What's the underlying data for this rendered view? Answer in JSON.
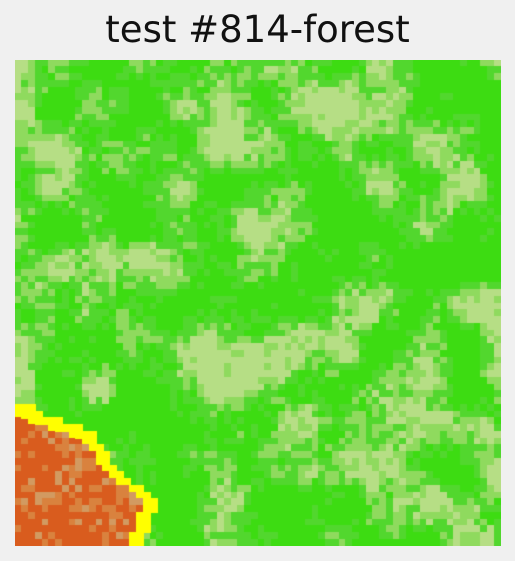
{
  "header": {
    "title": "test #814-forest"
  },
  "grid": {
    "cells_per_side": 72,
    "palette": {
      "forest": "#3ddc12",
      "forest_alt": "#52d72e",
      "grass": "#8fda5e",
      "meadow": "#b6de85",
      "fire_front": "#ffff00",
      "burned": "#d95c1e",
      "burned_alt": "#d9823e",
      "burned_light": "#d29a61"
    },
    "burned_region": "lower-left corner",
    "fire_front_state": "active"
  }
}
